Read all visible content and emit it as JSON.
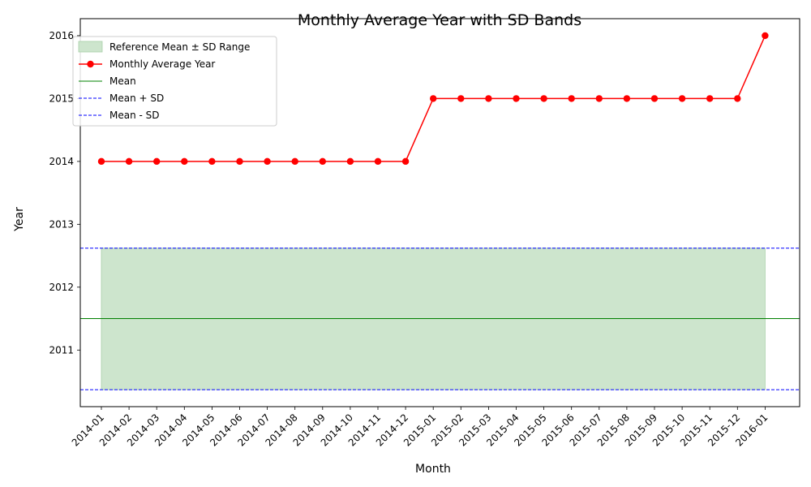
{
  "chart_data": {
    "type": "line",
    "title": "Monthly Average Year with SD Bands",
    "xlabel": "Month",
    "ylabel": "Year",
    "categories": [
      "2014-01",
      "2014-02",
      "2014-03",
      "2014-04",
      "2014-05",
      "2014-06",
      "2014-07",
      "2014-08",
      "2014-09",
      "2014-10",
      "2014-11",
      "2014-12",
      "2015-01",
      "2015-02",
      "2015-03",
      "2015-04",
      "2015-05",
      "2015-06",
      "2015-07",
      "2015-08",
      "2015-09",
      "2015-10",
      "2015-11",
      "2015-12",
      "2016-01"
    ],
    "series": [
      {
        "name": "Monthly Average Year",
        "color": "#ff0000",
        "marker": "circle",
        "values": [
          2014,
          2014,
          2014,
          2014,
          2014,
          2014,
          2014,
          2014,
          2014,
          2014,
          2014,
          2014,
          2015,
          2015,
          2015,
          2015,
          2015,
          2015,
          2015,
          2015,
          2015,
          2015,
          2015,
          2015,
          2016
        ]
      }
    ],
    "reference": {
      "mean": 2011.5,
      "mean_plus_sd": 2012.62,
      "mean_minus_sd": 2010.37,
      "band_label": "Reference Mean ± SD Range",
      "mean_label": "Mean",
      "plus_label": "Mean + SD",
      "minus_label": "Mean - SD",
      "band_color": "#cde5cd",
      "mean_color": "#008000",
      "sd_color": "#0000ff"
    },
    "yticks": [
      2011,
      2012,
      2013,
      2014,
      2015,
      2016
    ],
    "ylim": [
      2010.1,
      2016.27
    ],
    "grid": false,
    "legend_position": "top-left"
  }
}
